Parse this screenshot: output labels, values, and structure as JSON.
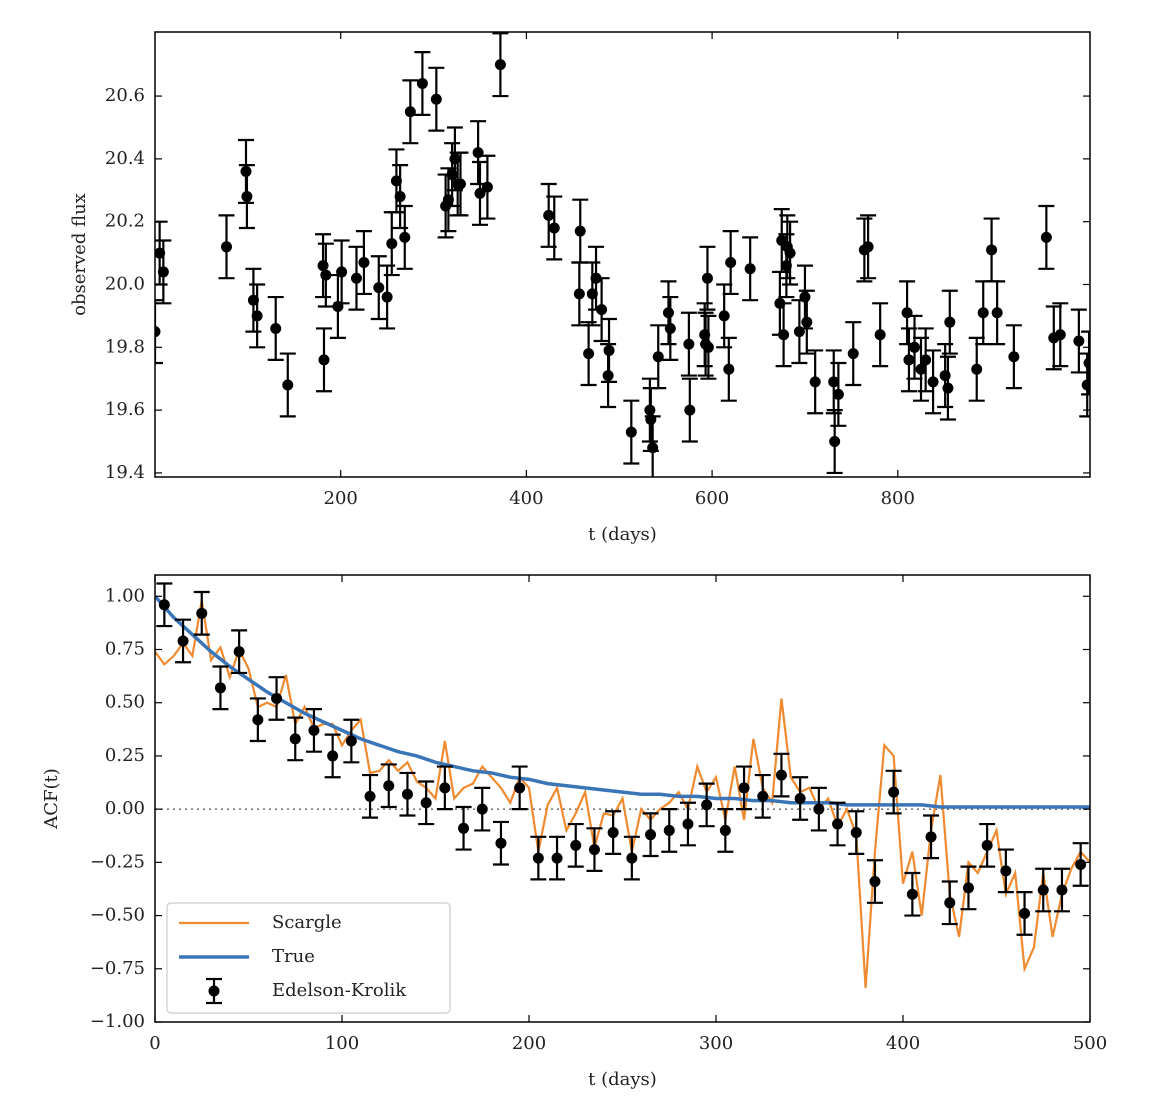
{
  "chart_data": [
    {
      "type": "errorbar",
      "xlabel": "t (days)",
      "ylabel": "observed flux",
      "color": "#000000",
      "xlim": [
        0,
        1007
      ],
      "ylim": [
        19.387,
        20.804
      ],
      "xticks": [
        200,
        400,
        600,
        800
      ],
      "yticks": [
        19.4,
        19.6,
        19.8,
        {
          "value": 20,
          "label": "20.0"
        },
        20.2,
        20.4,
        20.6
      ],
      "yerr": 0.1,
      "x": [
        0,
        5,
        9,
        77,
        98,
        99,
        106,
        110,
        130,
        143,
        181,
        182,
        184,
        197,
        201,
        217,
        225,
        241,
        250,
        255,
        260,
        264,
        269,
        275,
        288,
        303,
        313,
        316,
        320,
        323,
        326,
        329,
        348,
        350,
        358,
        372,
        424,
        430,
        457,
        458,
        467,
        471,
        475,
        481,
        489,
        488,
        513,
        533,
        534,
        536,
        542,
        553,
        555,
        575,
        576,
        592,
        593,
        595,
        596,
        613,
        618,
        620,
        641,
        673,
        675,
        677,
        680,
        681,
        684,
        694,
        700,
        702,
        711,
        731,
        732,
        736,
        752,
        764,
        768,
        781,
        810,
        812,
        818,
        825,
        830,
        838,
        851,
        854,
        856,
        885,
        892,
        901,
        907,
        925,
        960,
        968,
        975,
        995,
        1004,
        1006
      ],
      "values": [
        19.85,
        20.1,
        20.04,
        20.12,
        20.36,
        20.28,
        19.95,
        19.9,
        19.86,
        19.68,
        20.06,
        19.76,
        20.03,
        19.93,
        20.04,
        20.02,
        20.07,
        19.99,
        19.96,
        20.13,
        20.33,
        20.28,
        20.15,
        20.55,
        20.64,
        20.59,
        20.25,
        20.27,
        20.35,
        20.4,
        20.32,
        20.32,
        20.42,
        20.29,
        20.31,
        20.7,
        20.22,
        20.18,
        19.97,
        20.17,
        19.78,
        19.97,
        20.02,
        19.92,
        19.79,
        19.71,
        19.53,
        19.6,
        19.57,
        19.48,
        19.77,
        19.91,
        19.86,
        19.81,
        19.6,
        19.84,
        19.81,
        20.02,
        19.8,
        19.9,
        19.73,
        20.07,
        20.05,
        19.94,
        20.14,
        19.84,
        20.06,
        20.12,
        20.1,
        19.85,
        19.96,
        19.88,
        19.69,
        19.69,
        19.5,
        19.65,
        19.78,
        20.11,
        20.12,
        19.84,
        19.91,
        19.76,
        19.8,
        19.73,
        19.76,
        19.69,
        19.71,
        19.67,
        19.88,
        19.73,
        19.91,
        20.11,
        19.91,
        19.77,
        20.15,
        19.83,
        19.84,
        19.82,
        19.68,
        19.75
      ]
    },
    {
      "type": "line",
      "xlabel": "t (days)",
      "ylabel": "ACF(t)",
      "xlim": [
        0,
        500
      ],
      "ylim": [
        -1,
        1.1
      ],
      "xticks": [
        0,
        100,
        200,
        300,
        400,
        500
      ],
      "yticks": [
        {
          "value": -1,
          "label": "−1.00"
        },
        {
          "value": -0.75,
          "label": "−0.75"
        },
        {
          "value": -0.5,
          "label": "−0.50"
        },
        {
          "value": -0.25,
          "label": "−0.25"
        },
        {
          "value": 0,
          "label": "0.00"
        },
        {
          "value": 0.25,
          "label": "0.25"
        },
        {
          "value": 0.5,
          "label": "0.50"
        },
        {
          "value": 0.75,
          "label": "0.75"
        },
        {
          "value": 1,
          "label": "1.00"
        }
      ],
      "hline": 0,
      "legend": "lower left",
      "series": [
        {
          "name": "Scargle",
          "color": "#f08a30",
          "x": [
            0,
            5,
            10,
            15,
            20,
            25,
            30,
            35,
            40,
            45,
            50,
            55,
            60,
            65,
            70,
            75,
            80,
            85,
            90,
            95,
            100,
            105,
            110,
            115,
            120,
            125,
            130,
            135,
            140,
            145,
            150,
            155,
            160,
            165,
            170,
            175,
            180,
            185,
            190,
            195,
            200,
            205,
            210,
            215,
            220,
            225,
            230,
            235,
            240,
            245,
            250,
            255,
            260,
            265,
            270,
            275,
            280,
            285,
            290,
            295,
            300,
            305,
            310,
            315,
            320,
            325,
            330,
            335,
            340,
            345,
            350,
            355,
            360,
            365,
            370,
            375,
            380,
            385,
            390,
            395,
            400,
            405,
            410,
            415,
            420,
            425,
            430,
            435,
            440,
            445,
            450,
            455,
            460,
            465,
            470,
            475,
            480,
            485,
            490,
            495,
            500
          ],
          "values": [
            0.74,
            0.68,
            0.72,
            0.78,
            0.72,
            0.98,
            0.7,
            0.76,
            0.62,
            0.75,
            0.66,
            0.48,
            0.5,
            0.48,
            0.63,
            0.4,
            0.48,
            0.38,
            0.4,
            0.4,
            0.3,
            0.37,
            0.42,
            0.17,
            0.18,
            0.23,
            0.18,
            0.22,
            0.13,
            0.1,
            0.05,
            0.32,
            0.05,
            0.1,
            0.12,
            0.2,
            0.15,
            0.1,
            0.03,
            0.15,
            0.1,
            -0.2,
            0.02,
            0.1,
            -0.1,
            -0.02,
            0.08,
            -0.18,
            -0.02,
            -0.03,
            0.05,
            -0.2,
            0.0,
            -0.05,
            0.0,
            0.03,
            0.08,
            0.0,
            0.2,
            0.08,
            0.15,
            -0.05,
            0.2,
            -0.05,
            0.33,
            0.1,
            0.03,
            0.52,
            0.15,
            0.08,
            0.1,
            0.0,
            0.05,
            -0.08,
            0.0,
            -0.12,
            -0.84,
            -0.2,
            0.3,
            0.25,
            -0.35,
            -0.2,
            -0.5,
            -0.1,
            0.16,
            -0.4,
            -0.6,
            -0.25,
            -0.3,
            -0.2,
            -0.1,
            -0.4,
            -0.3,
            -0.75,
            -0.65,
            -0.3,
            -0.6,
            -0.4,
            -0.28,
            -0.2,
            -0.25
          ]
        },
        {
          "name": "True",
          "color": "#3a75b8",
          "x": [
            0,
            10,
            20,
            30,
            40,
            50,
            60,
            70,
            80,
            90,
            100,
            110,
            120,
            130,
            140,
            150,
            160,
            170,
            180,
            190,
            200,
            210,
            220,
            230,
            240,
            250,
            260,
            270,
            280,
            290,
            300,
            310,
            320,
            330,
            340,
            350,
            360,
            370,
            380,
            390,
            400,
            410,
            420,
            430,
            440,
            450,
            460,
            470,
            480,
            490,
            500
          ],
          "values": [
            1.0,
            0.9,
            0.82,
            0.74,
            0.67,
            0.61,
            0.55,
            0.5,
            0.45,
            0.41,
            0.37,
            0.33,
            0.3,
            0.27,
            0.25,
            0.22,
            0.2,
            0.18,
            0.17,
            0.15,
            0.14,
            0.12,
            0.11,
            0.1,
            0.09,
            0.08,
            0.07,
            0.07,
            0.06,
            0.06,
            0.05,
            0.05,
            0.04,
            0.04,
            0.03,
            0.03,
            0.03,
            0.02,
            0.02,
            0.02,
            0.02,
            0.02,
            0.01,
            0.01,
            0.01,
            0.01,
            0.01,
            0.01,
            0.01,
            0.01,
            0.01
          ]
        },
        {
          "name": "Edelson-Krolik",
          "color": "#000000",
          "kind": "errorbar",
          "yerr": 0.1,
          "x": [
            5,
            15,
            25,
            35,
            45,
            55,
            65,
            75,
            85,
            95,
            105,
            115,
            125,
            135,
            145,
            155,
            165,
            175,
            185,
            195,
            205,
            215,
            225,
            235,
            245,
            255,
            265,
            275,
            285,
            295,
            305,
            315,
            325,
            335,
            345,
            355,
            365,
            375,
            385,
            395,
            405,
            415,
            425,
            435,
            445,
            455,
            465,
            475,
            485,
            495
          ],
          "values": [
            0.96,
            0.79,
            0.92,
            0.57,
            0.74,
            0.42,
            0.52,
            0.33,
            0.37,
            0.25,
            0.32,
            0.06,
            0.11,
            0.07,
            0.03,
            0.1,
            -0.09,
            0.0,
            -0.16,
            0.1,
            -0.23,
            -0.23,
            -0.17,
            -0.19,
            -0.11,
            -0.23,
            -0.12,
            -0.1,
            -0.07,
            0.02,
            -0.1,
            0.1,
            0.06,
            0.16,
            0.05,
            0.0,
            -0.07,
            -0.11,
            -0.34,
            0.08,
            -0.4,
            -0.13,
            -0.44,
            -0.37,
            -0.17,
            -0.29,
            -0.49,
            -0.38,
            -0.38,
            -0.26
          ]
        }
      ]
    }
  ]
}
